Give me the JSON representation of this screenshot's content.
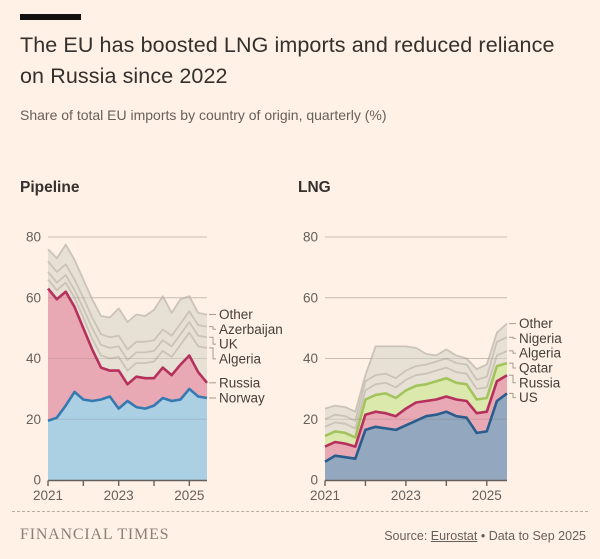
{
  "header": {
    "title": "The EU has boosted LNG imports and reduced reliance on Russia since 2022",
    "subtitle": "Share of total EU imports by country of origin, quarterly (%)"
  },
  "palette": {
    "background": "#fff1e5",
    "title_text": "#33302e",
    "muted_text": "#66605c",
    "grid_under": "#dfd3c5",
    "grid_over": "rgba(102,96,92,0.18)",
    "axis": "#66605c",
    "label_text": "#45403c",
    "connector": "#a59d93",
    "accent_bar": "#121110"
  },
  "chart_data": [
    {
      "type": "area",
      "stacked": true,
      "title": "Pipeline",
      "x": [
        "2021Q1",
        "2021Q2",
        "2021Q3",
        "2021Q4",
        "2022Q1",
        "2022Q2",
        "2022Q3",
        "2022Q4",
        "2023Q1",
        "2023Q2",
        "2023Q3",
        "2023Q4",
        "2024Q1",
        "2024Q2",
        "2024Q3",
        "2024Q4",
        "2025Q1",
        "2025Q2",
        "2025Q3"
      ],
      "xticks": [
        "2021",
        "2023",
        "2025"
      ],
      "yticks": [
        0,
        20,
        40,
        60,
        80
      ],
      "ylim": [
        0,
        80
      ],
      "grid": true,
      "legend_position": "right-end-labels",
      "series": [
        {
          "name": "Norway",
          "fill": "#abcfe3",
          "line": "#3579b2",
          "values": [
            19.5,
            20.5,
            24.5,
            29,
            26.5,
            26,
            26.5,
            27.5,
            23.5,
            26,
            24,
            23.5,
            24.5,
            27,
            26,
            26.5,
            30,
            27.5,
            27
          ]
        },
        {
          "name": "Russia",
          "fill": "#e9a9b4",
          "line": "#b5305c",
          "values": [
            43.5,
            39,
            37.5,
            28,
            23.5,
            17,
            10.5,
            8.5,
            12.5,
            5.5,
            10,
            10,
            9,
            10,
            8.5,
            11.5,
            11,
            8,
            5
          ]
        },
        {
          "name": "Algeria",
          "fill": "#e7e0d5",
          "line": "#ccc3b8",
          "values": [
            3,
            3,
            3,
            3,
            3.5,
            3.5,
            4,
            4,
            4.5,
            4.5,
            4.5,
            5,
            5.5,
            5.5,
            6,
            6.5,
            7.5,
            8.5,
            11.5
          ]
        },
        {
          "name": "UK",
          "fill": "#e7e0d5",
          "line": "#ccc3b8",
          "values": [
            2.5,
            2.5,
            2.5,
            2.5,
            3,
            3.5,
            3.5,
            3.5,
            3.5,
            3.5,
            3.5,
            3.5,
            3.5,
            3.5,
            3.5,
            3.5,
            3.5,
            3.5,
            3.5
          ]
        },
        {
          "name": "Azerbaijan",
          "fill": "#e7e0d5",
          "line": "#ccc3b8",
          "values": [
            3.5,
            3.5,
            3.5,
            3.5,
            3.5,
            3.5,
            3.5,
            3.5,
            3.5,
            3.5,
            3.5,
            3.5,
            3.5,
            3.5,
            3.5,
            3.5,
            3.5,
            3.5,
            3.5
          ]
        },
        {
          "name": "Other",
          "fill": "#e7e0d5",
          "line": "#ccc3b8",
          "values": [
            4,
            4.5,
            6.5,
            6.5,
            6,
            6,
            6,
            6.5,
            9,
            9,
            9,
            8.5,
            10,
            11,
            7.5,
            8,
            5,
            4,
            4
          ]
        }
      ]
    },
    {
      "type": "area",
      "stacked": true,
      "title": "LNG",
      "x": [
        "2021Q1",
        "2021Q2",
        "2021Q3",
        "2021Q4",
        "2022Q1",
        "2022Q2",
        "2022Q3",
        "2022Q4",
        "2023Q1",
        "2023Q2",
        "2023Q3",
        "2023Q4",
        "2024Q1",
        "2024Q2",
        "2024Q3",
        "2024Q4",
        "2025Q1",
        "2025Q2",
        "2025Q3"
      ],
      "xticks": [
        "2021",
        "2023",
        "2025"
      ],
      "yticks": [
        0,
        20,
        40,
        60,
        80
      ],
      "ylim": [
        0,
        80
      ],
      "grid": true,
      "legend_position": "right-end-labels",
      "series": [
        {
          "name": "US",
          "fill": "#93a7bf",
          "line": "#2a5c8d",
          "values": [
            6,
            8,
            7.5,
            7,
            16.5,
            17.5,
            17,
            16.5,
            18,
            19.5,
            21,
            21.5,
            22.5,
            21,
            20.5,
            15.5,
            16,
            26,
            28.5
          ]
        },
        {
          "name": "Russia",
          "fill": "#e9a9b4",
          "line": "#b5305c",
          "values": [
            5,
            4.5,
            4.5,
            4,
            5,
            5,
            5,
            4.5,
            5.5,
            6,
            5,
            5,
            5,
            5.5,
            5.5,
            6.5,
            6.5,
            6.5,
            6
          ]
        },
        {
          "name": "Qatar",
          "fill": "#dbe9ad",
          "line": "#a3c45c",
          "values": [
            3.5,
            3.5,
            3.5,
            3,
            5,
            5.5,
            6.5,
            6,
            6,
            5.5,
            5.5,
            6,
            6,
            5.5,
            5.5,
            4.5,
            4.5,
            5,
            4
          ]
        },
        {
          "name": "Algeria",
          "fill": "#e7e0d5",
          "line": "#ccc3b8",
          "values": [
            3,
            3,
            3,
            3,
            3,
            3.5,
            3.5,
            3.5,
            3.5,
            3.5,
            3.5,
            3.5,
            3.5,
            3.5,
            3.5,
            3.5,
            3.5,
            3.5,
            4
          ]
        },
        {
          "name": "Nigeria",
          "fill": "#e7e0d5",
          "line": "#ccc3b8",
          "values": [
            2.5,
            2.5,
            2.5,
            2.5,
            3,
            3,
            3,
            3,
            3,
            3,
            3,
            3,
            3,
            3,
            3,
            3,
            3.5,
            4.5,
            4.5
          ]
        },
        {
          "name": "Other",
          "fill": "#e7e0d5",
          "line": "#ccc3b8",
          "values": [
            3.5,
            3,
            3,
            3,
            2,
            9.5,
            9,
            10.5,
            8,
            6,
            3.5,
            2,
            3,
            2.5,
            2,
            3.5,
            4,
            3,
            4.5
          ]
        }
      ]
    }
  ],
  "footer": {
    "brand": "FINANCIAL TIMES",
    "source_label": "Source:",
    "source_link": "Eurostat",
    "source_rest": "• Data to Sep 2025"
  }
}
